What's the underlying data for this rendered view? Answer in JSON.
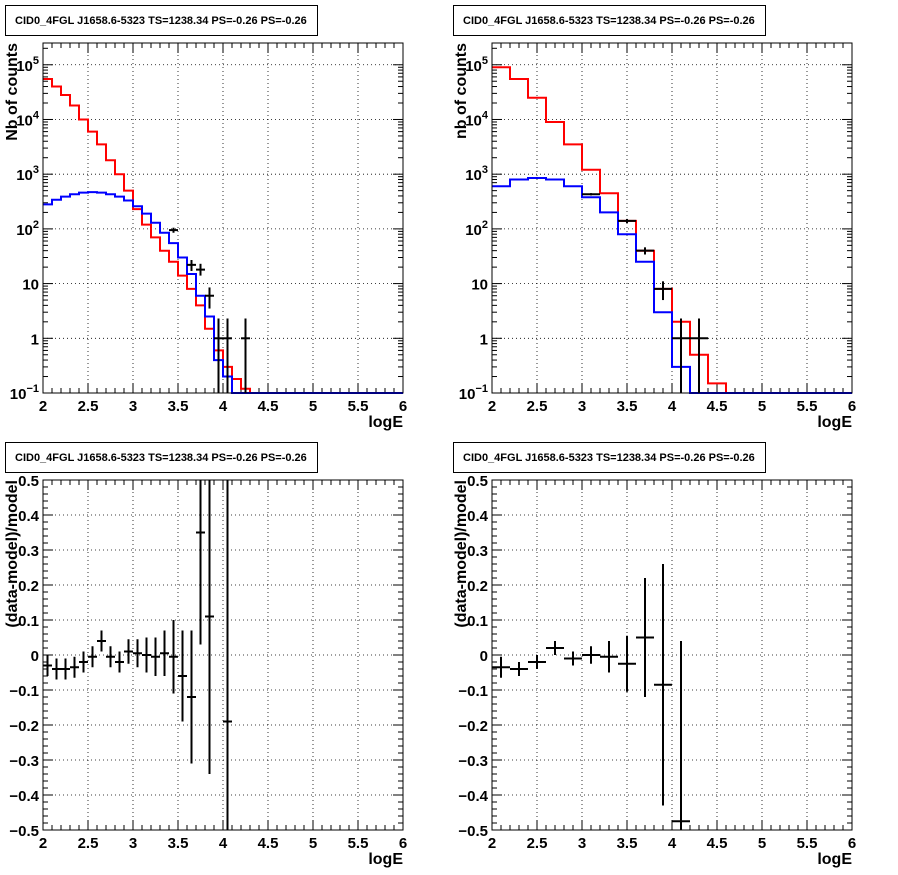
{
  "chart_data": [
    {
      "type": "line",
      "title": "CID0_4FGL J1658.6-5323 TS=1238.34 PS=-0.26 PS=-0.26",
      "xlabel": "logE",
      "ylabel": "Nb of counts",
      "xlim": [
        2,
        6
      ],
      "ylim": [
        0.1,
        250000
      ],
      "yscale": "log",
      "grid": true,
      "x_ticks": [
        "2",
        "2.5",
        "3",
        "3.5",
        "4",
        "4.5",
        "5",
        "5.5",
        "6"
      ],
      "y_ticks": [
        {
          "v": 0.1,
          "base": "10",
          "exp": "−1"
        },
        {
          "v": 1,
          "base": "1",
          "exp": ""
        },
        {
          "v": 10,
          "base": "10",
          "exp": ""
        },
        {
          "v": 100,
          "base": "10",
          "exp": "2"
        },
        {
          "v": 1000,
          "base": "10",
          "exp": "3"
        },
        {
          "v": 10000,
          "base": "10",
          "exp": "4"
        },
        {
          "v": 100000,
          "base": "10",
          "exp": "5"
        }
      ],
      "bin_width": 0.1,
      "series": [
        {
          "kind": "hist",
          "color": "#ff0000",
          "x_start": 2.0,
          "values": [
            55000,
            40000,
            28000,
            18000,
            10000,
            6000,
            3500,
            1800,
            1000,
            500,
            230,
            120,
            70,
            40,
            25,
            14,
            8,
            4,
            1.5,
            0.6,
            0.3,
            0.18,
            0.12,
            0.1,
            0.1,
            0.1,
            0.1,
            0.1,
            0.1,
            0.1,
            0.1,
            0.1,
            0.1,
            0.1,
            0.1,
            0.1,
            0.1,
            0.1,
            0.1,
            0.1
          ]
        },
        {
          "kind": "hist",
          "color": "#0000ff",
          "x_start": 2.0,
          "values": [
            280,
            340,
            390,
            430,
            460,
            470,
            460,
            430,
            390,
            330,
            260,
            190,
            130,
            85,
            55,
            30,
            15,
            6,
            2.5,
            0.4,
            0.2,
            0.1,
            0.1,
            0.1,
            0.1,
            0.1,
            0.1,
            0.1,
            0.1,
            0.1,
            0.1,
            0.1,
            0.1,
            0.1,
            0.1,
            0.1,
            0.1,
            0.1,
            0.1,
            0.1
          ]
        },
        {
          "kind": "points",
          "color": "#000000",
          "x_err": 0.05,
          "points": [
            {
              "x": 3.45,
              "y": 95,
              "lo": 85,
              "hi": 105
            },
            {
              "x": 3.65,
              "y": 22,
              "lo": 17,
              "hi": 27
            },
            {
              "x": 3.75,
              "y": 18,
              "lo": 14,
              "hi": 23
            },
            {
              "x": 3.85,
              "y": 6,
              "lo": 3.5,
              "hi": 8.5
            },
            {
              "x": 3.95,
              "y": 1,
              "lo": 0.1,
              "hi": 2.3
            },
            {
              "x": 4.05,
              "y": 1,
              "lo": 0.1,
              "hi": 2.3
            },
            {
              "x": 4.25,
              "y": 1,
              "lo": 0.1,
              "hi": 2.3
            }
          ]
        }
      ]
    },
    {
      "type": "line",
      "title": "CID0_4FGL J1658.6-5323 TS=1238.34 PS=-0.26 PS=-0.26",
      "xlabel": "logE",
      "ylabel": "nb of counts",
      "xlim": [
        2,
        6
      ],
      "ylim": [
        0.1,
        250000
      ],
      "yscale": "log",
      "grid": true,
      "x_ticks": [
        "2",
        "2.5",
        "3",
        "3.5",
        "4",
        "4.5",
        "5",
        "5.5",
        "6"
      ],
      "y_ticks": [
        {
          "v": 0.1,
          "base": "10",
          "exp": "−1"
        },
        {
          "v": 1,
          "base": "1",
          "exp": ""
        },
        {
          "v": 10,
          "base": "10",
          "exp": ""
        },
        {
          "v": 100,
          "base": "10",
          "exp": "2"
        },
        {
          "v": 1000,
          "base": "10",
          "exp": "3"
        },
        {
          "v": 10000,
          "base": "10",
          "exp": "4"
        },
        {
          "v": 100000,
          "base": "10",
          "exp": "5"
        }
      ],
      "bin_width": 0.2,
      "series": [
        {
          "kind": "hist",
          "color": "#ff0000",
          "x_start": 2.0,
          "values": [
            90000,
            55000,
            25000,
            9000,
            3500,
            1200,
            450,
            140,
            40,
            8,
            2,
            0.5,
            0.15,
            0.1,
            0.1,
            0.1,
            0.1,
            0.1,
            0.1,
            0.1
          ]
        },
        {
          "kind": "hist",
          "color": "#0000ff",
          "x_start": 2.0,
          "values": [
            600,
            800,
            850,
            800,
            600,
            380,
            200,
            80,
            25,
            3,
            0.3,
            0.1,
            0.1,
            0.1,
            0.1,
            0.1,
            0.1,
            0.1,
            0.1,
            0.1
          ]
        },
        {
          "kind": "points",
          "color": "#000000",
          "x_err": 0.1,
          "points": [
            {
              "x": 3.1,
              "y": 430,
              "lo": 410,
              "hi": 450
            },
            {
              "x": 3.5,
              "y": 140,
              "lo": 128,
              "hi": 152
            },
            {
              "x": 3.7,
              "y": 40,
              "lo": 34,
              "hi": 46
            },
            {
              "x": 3.9,
              "y": 8,
              "lo": 5,
              "hi": 11
            },
            {
              "x": 4.1,
              "y": 1,
              "lo": 0.1,
              "hi": 2.3
            },
            {
              "x": 4.3,
              "y": 1,
              "lo": 0.1,
              "hi": 2.3
            }
          ]
        }
      ]
    },
    {
      "type": "scatter",
      "title": "CID0_4FGL J1658.6-5323 TS=1238.34 PS=-0.26 PS=-0.26",
      "xlabel": "logE",
      "ylabel": "(data-model)/model",
      "xlim": [
        2,
        6
      ],
      "ylim": [
        -0.5,
        0.5
      ],
      "grid": true,
      "x_ticks": [
        "2",
        "2.5",
        "3",
        "3.5",
        "4",
        "4.5",
        "5",
        "5.5",
        "6"
      ],
      "y_ticks": [
        {
          "v": -0.5,
          "label": "−0.5"
        },
        {
          "v": -0.4,
          "label": "−0.4"
        },
        {
          "v": -0.3,
          "label": "−0.3"
        },
        {
          "v": -0.2,
          "label": "−0.2"
        },
        {
          "v": -0.1,
          "label": "−0.1"
        },
        {
          "v": 0,
          "label": "0"
        },
        {
          "v": 0.1,
          "label": "0.1"
        },
        {
          "v": 0.2,
          "label": "0.2"
        },
        {
          "v": 0.3,
          "label": "0.3"
        },
        {
          "v": 0.4,
          "label": "0.4"
        },
        {
          "v": 0.5,
          "label": "0.5"
        }
      ],
      "series": [
        {
          "kind": "points",
          "color": "#000000",
          "x_err": 0.05,
          "points": [
            {
              "x": 2.05,
              "y": -0.03,
              "lo": -0.06,
              "hi": 0.0
            },
            {
              "x": 2.15,
              "y": -0.04,
              "lo": -0.07,
              "hi": -0.01
            },
            {
              "x": 2.25,
              "y": -0.04,
              "lo": -0.07,
              "hi": -0.01
            },
            {
              "x": 2.35,
              "y": -0.035,
              "lo": -0.065,
              "hi": -0.005
            },
            {
              "x": 2.45,
              "y": -0.02,
              "lo": -0.05,
              "hi": 0.01
            },
            {
              "x": 2.55,
              "y": -0.005,
              "lo": -0.035,
              "hi": 0.025
            },
            {
              "x": 2.65,
              "y": 0.04,
              "lo": 0.01,
              "hi": 0.07
            },
            {
              "x": 2.75,
              "y": -0.005,
              "lo": -0.035,
              "hi": 0.025
            },
            {
              "x": 2.85,
              "y": -0.02,
              "lo": -0.05,
              "hi": 0.01
            },
            {
              "x": 2.95,
              "y": 0.01,
              "lo": -0.025,
              "hi": 0.045
            },
            {
              "x": 3.05,
              "y": 0.005,
              "lo": -0.035,
              "hi": 0.045
            },
            {
              "x": 3.15,
              "y": 0.0,
              "lo": -0.05,
              "hi": 0.05
            },
            {
              "x": 3.25,
              "y": -0.005,
              "lo": -0.06,
              "hi": 0.05
            },
            {
              "x": 3.35,
              "y": 0.005,
              "lo": -0.06,
              "hi": 0.07
            },
            {
              "x": 3.45,
              "y": -0.005,
              "lo": -0.11,
              "hi": 0.1
            },
            {
              "x": 3.55,
              "y": -0.06,
              "lo": -0.19,
              "hi": 0.07
            },
            {
              "x": 3.65,
              "y": -0.12,
              "lo": -0.31,
              "hi": 0.07
            },
            {
              "x": 3.75,
              "y": 0.35,
              "lo": 0.03,
              "hi": 0.5
            },
            {
              "x": 3.85,
              "y": 0.11,
              "lo": -0.34,
              "hi": 0.5
            },
            {
              "x": 4.05,
              "y": -0.19,
              "lo": -0.5,
              "hi": 0.5
            }
          ]
        }
      ]
    },
    {
      "type": "scatter",
      "title": "CID0_4FGL J1658.6-5323 TS=1238.34 PS=-0.26 PS=-0.26",
      "xlabel": "logE",
      "ylabel": "(data-model)/model",
      "xlim": [
        2,
        6
      ],
      "ylim": [
        -0.5,
        0.5
      ],
      "grid": true,
      "x_ticks": [
        "2",
        "2.5",
        "3",
        "3.5",
        "4",
        "4.5",
        "5",
        "5.5",
        "6"
      ],
      "y_ticks": [
        {
          "v": -0.5,
          "label": "−0.5"
        },
        {
          "v": -0.4,
          "label": "−0.4"
        },
        {
          "v": -0.3,
          "label": "−0.3"
        },
        {
          "v": -0.2,
          "label": "−0.2"
        },
        {
          "v": -0.1,
          "label": "−0.1"
        },
        {
          "v": 0,
          "label": "0"
        },
        {
          "v": 0.1,
          "label": "0.1"
        },
        {
          "v": 0.2,
          "label": "0.2"
        },
        {
          "v": 0.3,
          "label": "0.3"
        },
        {
          "v": 0.4,
          "label": "0.4"
        },
        {
          "v": 0.5,
          "label": "0.5"
        }
      ],
      "series": [
        {
          "kind": "points",
          "color": "#000000",
          "x_err": 0.1,
          "points": [
            {
              "x": 2.1,
              "y": -0.035,
              "lo": -0.065,
              "hi": -0.005
            },
            {
              "x": 2.3,
              "y": -0.04,
              "lo": -0.06,
              "hi": -0.02
            },
            {
              "x": 2.5,
              "y": -0.02,
              "lo": -0.04,
              "hi": 0.0
            },
            {
              "x": 2.7,
              "y": 0.02,
              "lo": 0.0,
              "hi": 0.04
            },
            {
              "x": 2.9,
              "y": -0.01,
              "lo": -0.03,
              "hi": 0.01
            },
            {
              "x": 3.1,
              "y": 0.0,
              "lo": -0.025,
              "hi": 0.025
            },
            {
              "x": 3.3,
              "y": -0.005,
              "lo": -0.05,
              "hi": 0.04
            },
            {
              "x": 3.5,
              "y": -0.025,
              "lo": -0.105,
              "hi": 0.055
            },
            {
              "x": 3.7,
              "y": 0.05,
              "lo": -0.12,
              "hi": 0.22
            },
            {
              "x": 3.9,
              "y": -0.085,
              "lo": -0.43,
              "hi": 0.26
            },
            {
              "x": 4.1,
              "y": -0.475,
              "lo": -0.5,
              "hi": 0.04
            }
          ]
        }
      ]
    }
  ]
}
